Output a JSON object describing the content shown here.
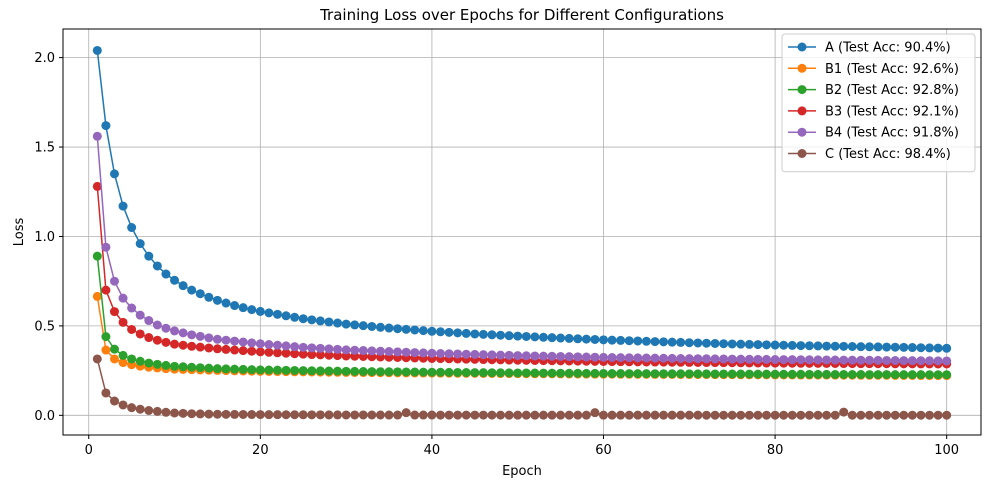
{
  "chart_data": {
    "type": "line",
    "title": "Training Loss over Epochs for Different Configurations",
    "xlabel": "Epoch",
    "ylabel": "Loss",
    "xlim": [
      -3,
      104
    ],
    "ylim": [
      -0.11,
      2.16
    ],
    "xticks": [
      0,
      20,
      40,
      60,
      80,
      100
    ],
    "yticks": [
      0.0,
      0.5,
      1.0,
      1.5,
      2.0
    ],
    "xtick_labels": [
      "0",
      "20",
      "40",
      "60",
      "80",
      "100"
    ],
    "ytick_labels": [
      "0.0",
      "0.5",
      "1.0",
      "1.5",
      "2.0"
    ],
    "grid": true,
    "legend_position": "top-right",
    "epochs": {
      "start": 1,
      "end": 100
    },
    "series": [
      {
        "name": "A (Test Acc: 90.4%)",
        "color": "#1f77b4",
        "anchors": [
          [
            1,
            2.04
          ],
          [
            2,
            1.62
          ],
          [
            3,
            1.35
          ],
          [
            4,
            1.17
          ],
          [
            5,
            1.05
          ],
          [
            6,
            0.96
          ],
          [
            7,
            0.89
          ],
          [
            8,
            0.835
          ],
          [
            9,
            0.79
          ],
          [
            10,
            0.755
          ],
          [
            11,
            0.725
          ],
          [
            12,
            0.7
          ],
          [
            13,
            0.68
          ],
          [
            14,
            0.66
          ],
          [
            15,
            0.643
          ],
          [
            16,
            0.628
          ],
          [
            17,
            0.614
          ],
          [
            18,
            0.602
          ],
          [
            19,
            0.591
          ],
          [
            20,
            0.581
          ],
          [
            25,
            0.54
          ],
          [
            30,
            0.51
          ],
          [
            35,
            0.488
          ],
          [
            40,
            0.47
          ],
          [
            45,
            0.455
          ],
          [
            50,
            0.443
          ],
          [
            55,
            0.432
          ],
          [
            60,
            0.422
          ],
          [
            65,
            0.414
          ],
          [
            70,
            0.406
          ],
          [
            75,
            0.399
          ],
          [
            80,
            0.393
          ],
          [
            85,
            0.388
          ],
          [
            90,
            0.384
          ],
          [
            95,
            0.38
          ],
          [
            100,
            0.375
          ]
        ],
        "spikes": []
      },
      {
        "name": "B1 (Test Acc: 92.6%)",
        "color": "#ff7f0e",
        "anchors": [
          [
            1,
            0.665
          ],
          [
            2,
            0.365
          ],
          [
            3,
            0.315
          ],
          [
            4,
            0.295
          ],
          [
            5,
            0.283
          ],
          [
            6,
            0.275
          ],
          [
            7,
            0.269
          ],
          [
            8,
            0.265
          ],
          [
            9,
            0.261
          ],
          [
            10,
            0.258
          ],
          [
            15,
            0.251
          ],
          [
            20,
            0.246
          ],
          [
            30,
            0.24
          ],
          [
            40,
            0.236
          ],
          [
            50,
            0.233
          ],
          [
            60,
            0.23
          ],
          [
            70,
            0.228
          ],
          [
            80,
            0.226
          ],
          [
            90,
            0.224
          ],
          [
            100,
            0.222
          ]
        ],
        "spikes": []
      },
      {
        "name": "B2 (Test Acc: 92.8%)",
        "color": "#2ca02c",
        "anchors": [
          [
            1,
            0.89
          ],
          [
            2,
            0.44
          ],
          [
            3,
            0.37
          ],
          [
            4,
            0.335
          ],
          [
            5,
            0.315
          ],
          [
            6,
            0.302
          ],
          [
            7,
            0.292
          ],
          [
            8,
            0.285
          ],
          [
            9,
            0.279
          ],
          [
            10,
            0.274
          ],
          [
            15,
            0.261
          ],
          [
            20,
            0.254
          ],
          [
            30,
            0.246
          ],
          [
            40,
            0.241
          ],
          [
            50,
            0.237
          ],
          [
            60,
            0.234
          ],
          [
            70,
            0.232
          ],
          [
            80,
            0.23
          ],
          [
            90,
            0.228
          ],
          [
            100,
            0.227
          ]
        ],
        "spikes": []
      },
      {
        "name": "B3 (Test Acc: 92.1%)",
        "color": "#d62728",
        "anchors": [
          [
            1,
            1.28
          ],
          [
            2,
            0.7
          ],
          [
            3,
            0.58
          ],
          [
            4,
            0.52
          ],
          [
            5,
            0.48
          ],
          [
            6,
            0.455
          ],
          [
            7,
            0.435
          ],
          [
            8,
            0.42
          ],
          [
            9,
            0.408
          ],
          [
            10,
            0.398
          ],
          [
            12,
            0.386
          ],
          [
            15,
            0.372
          ],
          [
            20,
            0.355
          ],
          [
            25,
            0.342
          ],
          [
            30,
            0.332
          ],
          [
            40,
            0.318
          ],
          [
            50,
            0.308
          ],
          [
            60,
            0.301
          ],
          [
            70,
            0.296
          ],
          [
            80,
            0.292
          ],
          [
            90,
            0.289
          ],
          [
            100,
            0.287
          ]
        ],
        "spikes": []
      },
      {
        "name": "B4 (Test Acc: 91.8%)",
        "color": "#9467bd",
        "anchors": [
          [
            1,
            1.56
          ],
          [
            2,
            0.94
          ],
          [
            3,
            0.75
          ],
          [
            4,
            0.655
          ],
          [
            5,
            0.6
          ],
          [
            6,
            0.56
          ],
          [
            7,
            0.53
          ],
          [
            8,
            0.505
          ],
          [
            9,
            0.487
          ],
          [
            10,
            0.472
          ],
          [
            12,
            0.45
          ],
          [
            15,
            0.425
          ],
          [
            20,
            0.4
          ],
          [
            25,
            0.38
          ],
          [
            30,
            0.366
          ],
          [
            40,
            0.347
          ],
          [
            50,
            0.334
          ],
          [
            60,
            0.324
          ],
          [
            70,
            0.317
          ],
          [
            80,
            0.312
          ],
          [
            90,
            0.308
          ],
          [
            100,
            0.304
          ]
        ],
        "spikes": []
      },
      {
        "name": "C (Test Acc: 98.4%)",
        "color": "#8c564b",
        "anchors": [
          [
            1,
            0.315
          ],
          [
            2,
            0.125
          ],
          [
            3,
            0.08
          ],
          [
            4,
            0.058
          ],
          [
            5,
            0.043
          ],
          [
            6,
            0.034
          ],
          [
            7,
            0.027
          ],
          [
            8,
            0.022
          ],
          [
            9,
            0.017
          ],
          [
            10,
            0.013
          ],
          [
            12,
            0.009
          ],
          [
            15,
            0.006
          ],
          [
            20,
            0.004
          ],
          [
            30,
            0.002
          ],
          [
            50,
            0.001
          ],
          [
            100,
            0.0005
          ]
        ],
        "spikes": [
          [
            37,
            0.015
          ],
          [
            59,
            0.015
          ],
          [
            88,
            0.018
          ]
        ]
      }
    ]
  }
}
